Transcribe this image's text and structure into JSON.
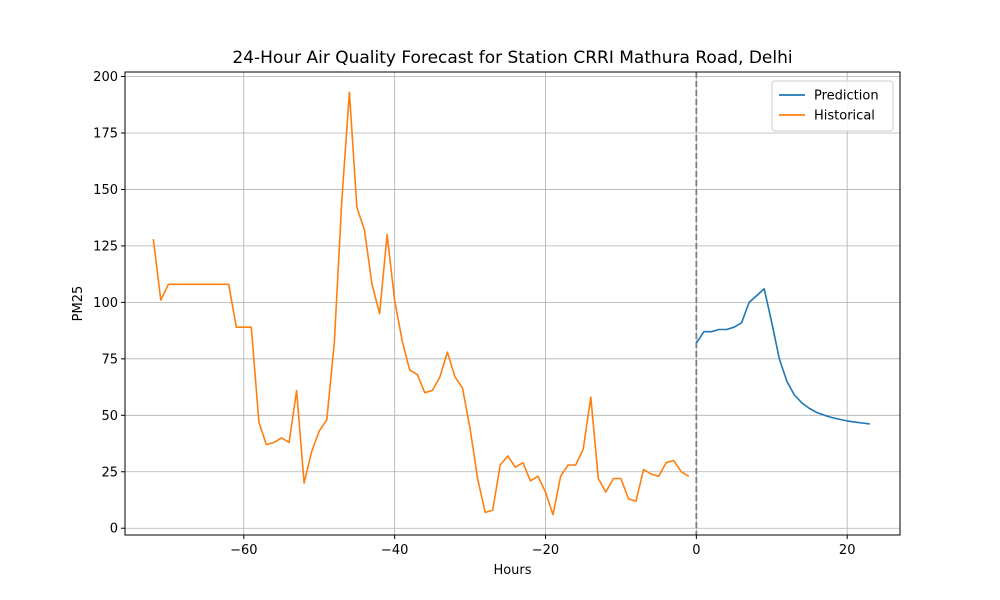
{
  "chart_data": {
    "type": "line",
    "title": "24-Hour Air Quality Forecast for Station CRRI Mathura Road, Delhi",
    "xlabel": "Hours",
    "ylabel": "PM25",
    "xlim": [
      -75.75,
      27
    ],
    "ylim": [
      -3,
      202
    ],
    "xticks": [
      -60,
      -40,
      -20,
      0,
      20
    ],
    "yticks": [
      0,
      25,
      50,
      75,
      100,
      125,
      150,
      175,
      200
    ],
    "grid": true,
    "legend_position": "top-right",
    "vline": {
      "x": 0,
      "style": "dashed",
      "color": "#7f7f7f"
    },
    "series": [
      {
        "name": "Prediction",
        "color": "#1f77b4",
        "x": [
          0,
          1,
          2,
          3,
          4,
          5,
          6,
          7,
          8,
          9,
          10,
          11,
          12,
          13,
          14,
          15,
          16,
          17,
          18,
          19,
          20,
          21,
          22,
          23
        ],
        "y": [
          82,
          87,
          87,
          88,
          88,
          89,
          91,
          100,
          103,
          106,
          91,
          75,
          65,
          59,
          55.5,
          53,
          51.2,
          50,
          49,
          48.2,
          47.5,
          47,
          46.6,
          46.2
        ]
      },
      {
        "name": "Historical",
        "color": "#ff7f0e",
        "x": [
          -72,
          -71,
          -70,
          -69,
          -68,
          -67,
          -66,
          -65,
          -64,
          -63,
          -62,
          -61,
          -60,
          -59,
          -58,
          -57,
          -56,
          -55,
          -54,
          -53,
          -52,
          -51,
          -50,
          -49,
          -48,
          -47,
          -46,
          -45,
          -44,
          -43,
          -42,
          -41,
          -40,
          -39,
          -38,
          -37,
          -36,
          -35,
          -34,
          -33,
          -32,
          -31,
          -30,
          -29,
          -28,
          -27,
          -26,
          -25,
          -24,
          -23,
          -22,
          -21,
          -20,
          -19,
          -18,
          -17,
          -16,
          -15,
          -14,
          -13,
          -12,
          -11,
          -10,
          -9,
          -8,
          -7,
          -6,
          -5,
          -4,
          -3,
          -2,
          -1
        ],
        "y": [
          128,
          101,
          108,
          108,
          108,
          108,
          108,
          108,
          108,
          108,
          108,
          89,
          89,
          89,
          47,
          37,
          38,
          40,
          38,
          61,
          20,
          34,
          43,
          48,
          82,
          145,
          193,
          142,
          132,
          108,
          95,
          130,
          101,
          83,
          70,
          68,
          60,
          61,
          67,
          78,
          67,
          62,
          44,
          22,
          7,
          8,
          28,
          32,
          27,
          29,
          21,
          23,
          16,
          6,
          23,
          28,
          28,
          35,
          58,
          22,
          16,
          22,
          22,
          13,
          12,
          26,
          24,
          23,
          29,
          30,
          25,
          23
        ]
      }
    ]
  }
}
